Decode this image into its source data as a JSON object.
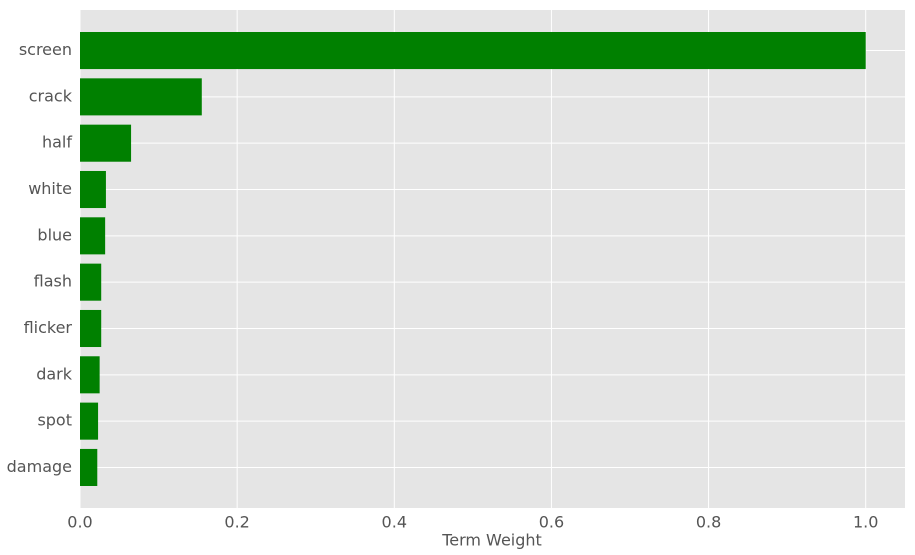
{
  "chart_data": {
    "type": "barh",
    "xlabel": "Term Weight",
    "categories": [
      "screen",
      "crack",
      "half",
      "white",
      "blue",
      "flash",
      "flicker",
      "dark",
      "spot",
      "damage"
    ],
    "values": [
      1.0,
      0.155,
      0.065,
      0.033,
      0.032,
      0.027,
      0.027,
      0.025,
      0.023,
      0.022
    ],
    "color": "#008000",
    "xlim": [
      0,
      1.05
    ],
    "xticks": [
      {
        "value": 0,
        "label": "0.0"
      },
      0.2,
      0.4,
      0.6,
      0.8,
      {
        "value": 1,
        "label": "1.0"
      }
    ],
    "grid": true
  }
}
